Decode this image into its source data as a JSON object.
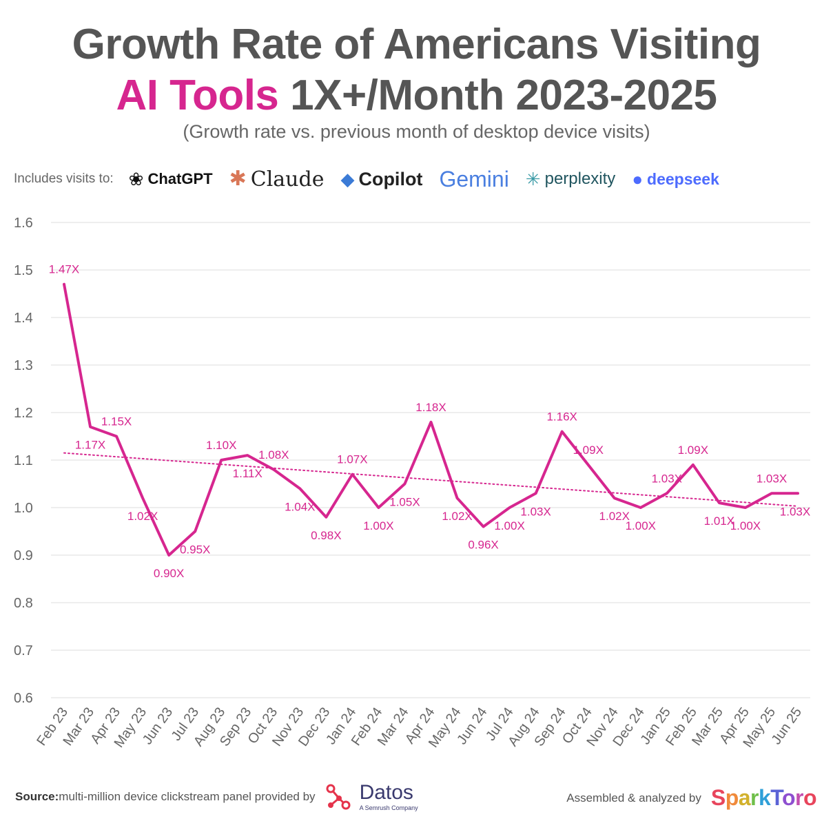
{
  "title": {
    "line1": "Growth Rate of Americans Visiting",
    "line2_accent": "AI Tools",
    "line2_rest": "1X+/Month 2023-2025"
  },
  "subtitle": "(Growth rate vs. previous month of desktop device visits)",
  "includes": {
    "label": "Includes visits to:",
    "brands": [
      "ChatGPT",
      "Claude",
      "Copilot",
      "Gemini",
      "perplexity",
      "deepseek"
    ]
  },
  "colors": {
    "accent": "#d6268f",
    "line": "#d6268f",
    "label": "#d6268f",
    "grid": "#dddddd",
    "text": "#555555"
  },
  "chart_data": {
    "type": "line",
    "title": "Growth Rate of Americans Visiting AI Tools 1X+/Month 2023-2025",
    "subtitle": "(Growth rate vs. previous month of desktop device visits)",
    "categories": [
      "Feb 23",
      "Mar 23",
      "Apr 23",
      "May 23",
      "Jun 23",
      "Jul 23",
      "Aug 23",
      "Sep 23",
      "Oct 23",
      "Nov 23",
      "Dec 23",
      "Jan 24",
      "Feb 24",
      "Mar 24",
      "Apr 24",
      "May 24",
      "Jun 24",
      "Jul 24",
      "Aug 24",
      "Sep 24",
      "Oct 24",
      "Nov 24",
      "Dec 24",
      "Jan 25",
      "Feb 25",
      "Mar 25",
      "Apr 25",
      "May 25",
      "Jun 25"
    ],
    "values": [
      1.47,
      1.17,
      1.15,
      1.02,
      0.9,
      0.95,
      1.1,
      1.11,
      1.08,
      1.04,
      0.98,
      1.07,
      1.0,
      1.05,
      1.18,
      1.02,
      0.96,
      1.0,
      1.03,
      1.16,
      1.09,
      1.02,
      1.0,
      1.03,
      1.09,
      1.01,
      1.0,
      1.03,
      1.03
    ],
    "labels": [
      "1.47X",
      "1.17X",
      "1.15X",
      "1.02X",
      "0.90X",
      "0.95X",
      "1.10X",
      "1.11X",
      "1.08X",
      "1.04X",
      "0.98X",
      "1.07X",
      "1.00X",
      "1.05X",
      "1.18X",
      "1.02X",
      "0.96X",
      "1.00X",
      "1.03X",
      "1.16X",
      "1.09X",
      "1.02X",
      "1.00X",
      "1.03X",
      "1.09X",
      "1.01X",
      "1.00X",
      "1.03X",
      "1.03X"
    ],
    "label_position": [
      "above",
      "below",
      "above",
      "below",
      "below",
      "below",
      "above",
      "below",
      "above",
      "below",
      "below",
      "above",
      "below",
      "below",
      "above",
      "below",
      "below",
      "below",
      "below",
      "above",
      "above",
      "below",
      "below",
      "above",
      "above",
      "below",
      "below",
      "above",
      "below"
    ],
    "trendline": {
      "style": "dotted",
      "start": 1.115,
      "end": 1.003
    },
    "yticks": [
      "1.6",
      "1.5",
      "1.4",
      "1.3",
      "1.2",
      "1.1",
      "1.0",
      "0.9",
      "0.8",
      "0.7",
      "0.6"
    ],
    "ylim": [
      0.6,
      1.6
    ],
    "xlabel": "",
    "ylabel": "",
    "grid": true,
    "legend": "none"
  },
  "footer": {
    "source_bold": "Source:",
    "source_text": "multi-million device clickstream panel provided by",
    "datos_name": "Datos",
    "datos_tagline": "A Semrush Company",
    "assembled_text": "Assembled & analyzed by",
    "sparktoro": "SparkToro",
    "sparktoro_colors": [
      "#e8455c",
      "#f08a3b",
      "#d2b12c",
      "#6fbf4a",
      "#2f9fd8",
      "#5b63d6",
      "#8e4fd0",
      "#c34fb0",
      "#e8455c"
    ]
  }
}
